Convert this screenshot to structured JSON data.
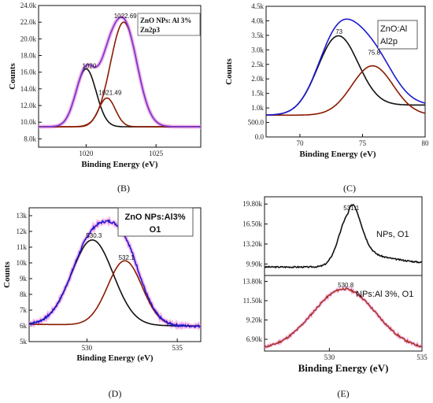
{
  "chart_data": [
    {
      "id": "B",
      "type": "line",
      "caption": "(B)",
      "xlabel": "Binding Energy (eV)",
      "ylabel": "Counts",
      "xlim": [
        1016.6,
        1028.2
      ],
      "ylim": [
        7000,
        24000
      ],
      "xticks": [
        1020,
        1025
      ],
      "xtick_labels": [
        "1020",
        "1025"
      ],
      "yticks": [
        8000,
        10000,
        12000,
        14000,
        16000,
        18000,
        20000,
        22000,
        24000
      ],
      "ytick_labels": [
        "8.0k",
        "10.0k",
        "12.0k",
        "14.0k",
        "16.0k",
        "18.0k",
        "20.0k",
        "22.0k",
        "24.0k"
      ],
      "legend": [
        "ZnO NPs: Al 3%",
        "Zn2p3"
      ],
      "baseline": 9450,
      "peaks": [
        {
          "center": 1020,
          "amplitude": 6950,
          "sigma": 0.72,
          "color": "#111111",
          "label": "1020"
        },
        {
          "center": 1021.49,
          "amplitude": 3450,
          "sigma": 0.6,
          "color": "#8b1a00",
          "label": "1021.49"
        },
        {
          "center": 1022.69,
          "amplitude": 12550,
          "sigma": 0.95,
          "color": "#8b1a00",
          "label": "1022.69"
        }
      ],
      "envelope": {
        "color": "#7a3fd0",
        "halo": "#f7a6e6"
      },
      "annotations": [
        {
          "text": "1020",
          "x": 1020,
          "y": 16500
        },
        {
          "text": "1021.49",
          "x": 1021.49,
          "y": 13300
        },
        {
          "text": "1022.69",
          "x": 1022.69,
          "y": 22500
        }
      ]
    },
    {
      "id": "C",
      "type": "line",
      "caption": "(C)",
      "xlabel": "Binding Energy (eV)",
      "ylabel": "Counts",
      "xlim": [
        67.3,
        80
      ],
      "ylim": [
        0,
        4500
      ],
      "xticks": [
        70,
        75,
        80
      ],
      "xtick_labels": [
        "70",
        "75",
        "80"
      ],
      "yticks": [
        0,
        500,
        1000,
        1500,
        2000,
        2500,
        3000,
        3500,
        4000,
        4500
      ],
      "ytick_labels": [
        "0.0",
        "500.0",
        "1.0k",
        "1.5k",
        "2.0k",
        "2.5k",
        "3.0k",
        "3.5k",
        "4.0k",
        "4.5k"
      ],
      "legend": [
        "ZnO:Al",
        "Al2p"
      ],
      "peaks": [
        {
          "center": 73,
          "amplitude": 2650,
          "sigma": 1.6,
          "color": "#111111",
          "label": "73",
          "base": 750,
          "base_slope": 0
        },
        {
          "center": 75.8,
          "amplitude": 1700,
          "sigma": 1.65,
          "color": "#8b1a00",
          "label": "75.8",
          "base": 750,
          "base_slope": 0
        }
      ],
      "black_tail": {
        "start": 750,
        "end": 1100
      },
      "envelope": {
        "color": "#1a1ad0"
      },
      "annotations": [
        {
          "text": "73",
          "x": 73,
          "y": 3550
        },
        {
          "text": "75.8",
          "x": 75.8,
          "y": 2830
        }
      ]
    },
    {
      "id": "D",
      "type": "line",
      "caption": "(D)",
      "xlabel": "Binding Energy (eV)",
      "ylabel": "Counts",
      "xlim": [
        526.8,
        536.3
      ],
      "ylim": [
        5000,
        13500
      ],
      "xticks": [
        530,
        535
      ],
      "xtick_labels": [
        "530",
        "535"
      ],
      "yticks": [
        5000,
        6000,
        7000,
        8000,
        9000,
        10000,
        11000,
        12000,
        13000
      ],
      "ytick_labels": [
        "5k",
        "6k",
        "7k",
        "8k",
        "9k",
        "10k",
        "11k",
        "12k",
        "13k"
      ],
      "legend": [
        "ZnO NPs:Al3%",
        "O1"
      ],
      "peaks": [
        {
          "center": 530.3,
          "amplitude": 5400,
          "sigma": 1.15,
          "color": "#111111",
          "label": "530.3"
        },
        {
          "center": 532.1,
          "amplitude": 4100,
          "sigma": 0.95,
          "color": "#8b1a00",
          "label": "532.1"
        }
      ],
      "envelope": {
        "color": "#1a1ad0",
        "halo": "#f7a6e6"
      },
      "annotations": [
        {
          "text": "530.3",
          "x": 530.3,
          "y": 11600
        },
        {
          "text": "532.1",
          "x": 532.1,
          "y": 10200
        }
      ]
    },
    {
      "id": "E1",
      "type": "line",
      "caption": "",
      "xlabel": "",
      "ylabel": "",
      "xlim": [
        526.5,
        535
      ],
      "ylim": [
        8000,
        21000
      ],
      "yticks": [
        9900,
        13200,
        16500,
        19800
      ],
      "ytick_labels": [
        "9.90k",
        "13.20k",
        "16.50k",
        "19.80k"
      ],
      "legend": [
        "NPs, O1"
      ],
      "color": "#111111",
      "annotations": [
        {
          "text": "531.1",
          "x": 531.1,
          "y": 18800
        }
      ]
    },
    {
      "id": "E2",
      "type": "line",
      "caption": "(E)",
      "xlabel": "Binding Energy (eV)",
      "ylabel": "",
      "xlim": [
        526.5,
        535
      ],
      "ylim": [
        5500,
        14500
      ],
      "xticks": [
        530,
        535
      ],
      "xtick_labels": [
        "530",
        "535"
      ],
      "yticks": [
        6900,
        9200,
        11500,
        13800
      ],
      "ytick_labels": [
        "6.90k",
        "9.20k",
        "11.50k",
        "13.80k"
      ],
      "legend": [
        "NPs:Al 3%, O1"
      ],
      "color": "#a0301a",
      "annotations": [
        {
          "text": "530.8",
          "x": 530.8,
          "y": 12900
        }
      ]
    }
  ]
}
